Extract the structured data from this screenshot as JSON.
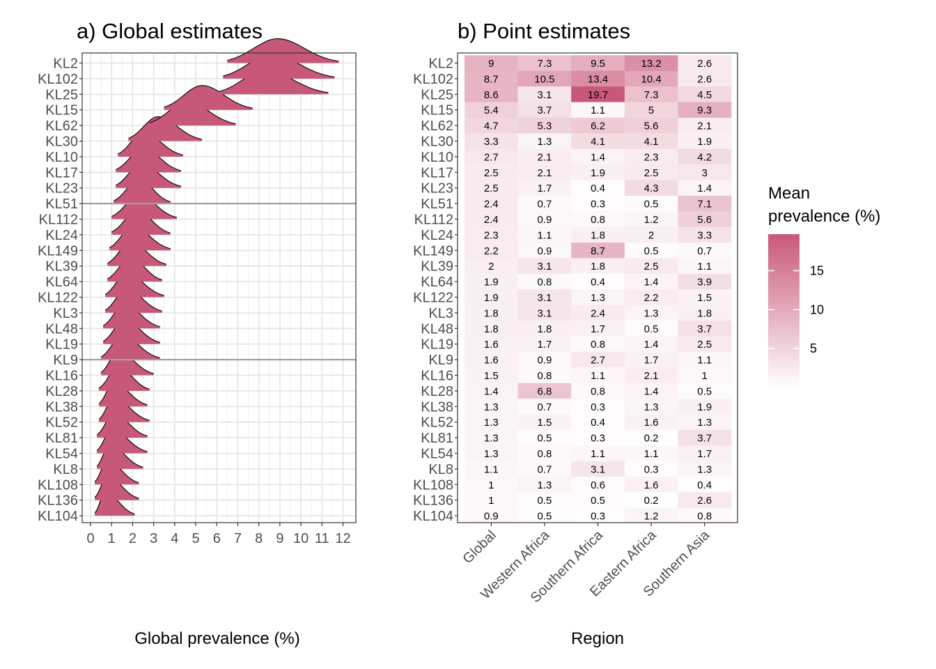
{
  "chart_data": [
    {
      "type": "ridgeline",
      "title": "a) Global estimates",
      "xlabel": "Global prevalence (%)",
      "ylabel": "",
      "xlim": [
        0,
        12
      ],
      "xticks": [
        0,
        1,
        2,
        3,
        4,
        5,
        6,
        7,
        8,
        9,
        10,
        11,
        12
      ],
      "grid": true,
      "fill_color": "#c8587a",
      "separator_lines_below": [
        "KL51",
        "KL9"
      ],
      "categories": [
        "KL2",
        "KL102",
        "KL25",
        "KL15",
        "KL62",
        "KL30",
        "KL10",
        "KL17",
        "KL23",
        "KL51",
        "KL112",
        "KL24",
        "KL149",
        "KL39",
        "KL64",
        "KL122",
        "KL3",
        "KL48",
        "KL19",
        "KL9",
        "KL16",
        "KL28",
        "KL38",
        "KL52",
        "KL81",
        "KL54",
        "KL8",
        "KL108",
        "KL136",
        "KL104"
      ],
      "distributions": [
        {
          "mode": 8.9,
          "min": 6.5,
          "max": 11.8
        },
        {
          "mode": 8.6,
          "min": 6.3,
          "max": 11.6
        },
        {
          "mode": 8.3,
          "min": 6.1,
          "max": 11.3
        },
        {
          "mode": 5.3,
          "min": 3.5,
          "max": 7.7
        },
        {
          "mode": 4.6,
          "min": 2.8,
          "max": 6.9
        },
        {
          "mode": 3.2,
          "min": 1.8,
          "max": 5.3
        },
        {
          "mode": 2.5,
          "min": 1.3,
          "max": 4.4
        },
        {
          "mode": 2.5,
          "min": 1.2,
          "max": 4.3
        },
        {
          "mode": 2.4,
          "min": 1.2,
          "max": 4.3
        },
        {
          "mode": 2.3,
          "min": 1.1,
          "max": 3.8
        },
        {
          "mode": 2.3,
          "min": 1.0,
          "max": 4.1
        },
        {
          "mode": 2.2,
          "min": 1.0,
          "max": 3.8
        },
        {
          "mode": 2.0,
          "min": 0.9,
          "max": 3.8
        },
        {
          "mode": 1.9,
          "min": 0.8,
          "max": 3.6
        },
        {
          "mode": 1.9,
          "min": 0.8,
          "max": 3.4
        },
        {
          "mode": 1.7,
          "min": 0.7,
          "max": 3.5
        },
        {
          "mode": 1.7,
          "min": 0.7,
          "max": 3.4
        },
        {
          "mode": 1.6,
          "min": 0.6,
          "max": 3.3
        },
        {
          "mode": 1.6,
          "min": 0.6,
          "max": 3.3
        },
        {
          "mode": 1.5,
          "min": 0.5,
          "max": 3.3
        },
        {
          "mode": 1.3,
          "min": 0.5,
          "max": 3.0
        },
        {
          "mode": 1.3,
          "min": 0.4,
          "max": 2.8
        },
        {
          "mode": 1.1,
          "min": 0.4,
          "max": 2.7
        },
        {
          "mode": 1.1,
          "min": 0.4,
          "max": 2.8
        },
        {
          "mode": 1.1,
          "min": 0.3,
          "max": 2.7
        },
        {
          "mode": 1.0,
          "min": 0.3,
          "max": 2.7
        },
        {
          "mode": 0.9,
          "min": 0.3,
          "max": 2.5
        },
        {
          "mode": 0.8,
          "min": 0.2,
          "max": 2.3
        },
        {
          "mode": 0.8,
          "min": 0.2,
          "max": 2.3
        },
        {
          "mode": 0.7,
          "min": 0.2,
          "max": 2.1
        }
      ]
    },
    {
      "type": "heatmap",
      "title": "b) Point estimates",
      "xlabel": "Region",
      "ylabel": "",
      "x_categories": [
        "Global",
        "Western Africa",
        "Southern Africa",
        "Eastern Africa",
        "Southern Asia"
      ],
      "y_categories": [
        "KL2",
        "KL102",
        "KL25",
        "KL15",
        "KL62",
        "KL30",
        "KL10",
        "KL17",
        "KL23",
        "KL51",
        "KL112",
        "KL24",
        "KL149",
        "KL39",
        "KL64",
        "KL122",
        "KL3",
        "KL48",
        "KL19",
        "KL9",
        "KL16",
        "KL28",
        "KL38",
        "KL52",
        "KL81",
        "KL54",
        "KL8",
        "KL108",
        "KL136",
        "KL104"
      ],
      "values": [
        [
          "9",
          "7.3",
          "9.5",
          "13.2",
          "2.6"
        ],
        [
          "8.7",
          "10.5",
          "13.4",
          "10.4",
          "2.6"
        ],
        [
          "8.6",
          "3.1",
          "19.7",
          "7.3",
          "4.5"
        ],
        [
          "5.4",
          "3.7",
          "1.1",
          "5",
          "9.3"
        ],
        [
          "4.7",
          "5.3",
          "6.2",
          "5.6",
          "2.1"
        ],
        [
          "3.3",
          "1.3",
          "4.1",
          "4.1",
          "1.9"
        ],
        [
          "2.7",
          "2.1",
          "1.4",
          "2.3",
          "4.2"
        ],
        [
          "2.5",
          "2.1",
          "1.9",
          "2.5",
          "3"
        ],
        [
          "2.5",
          "1.7",
          "0.4",
          "4.3",
          "1.4"
        ],
        [
          "2.4",
          "0.7",
          "0.3",
          "0.5",
          "7.1"
        ],
        [
          "2.4",
          "0.9",
          "0.8",
          "1.2",
          "5.6"
        ],
        [
          "2.3",
          "1.1",
          "1.8",
          "2",
          "3.3"
        ],
        [
          "2.2",
          "0.9",
          "8.7",
          "0.5",
          "0.7"
        ],
        [
          "2",
          "3.1",
          "1.8",
          "2.5",
          "1.1"
        ],
        [
          "1.9",
          "0.8",
          "0.4",
          "1.4",
          "3.9"
        ],
        [
          "1.9",
          "3.1",
          "1.3",
          "2.2",
          "1.5"
        ],
        [
          "1.8",
          "3.1",
          "2.4",
          "1.3",
          "1.8"
        ],
        [
          "1.8",
          "1.8",
          "1.7",
          "0.5",
          "3.7"
        ],
        [
          "1.6",
          "1.7",
          "0.8",
          "1.4",
          "2.5"
        ],
        [
          "1.6",
          "0.9",
          "2.7",
          "1.7",
          "1.1"
        ],
        [
          "1.5",
          "0.8",
          "1.1",
          "2.1",
          "1"
        ],
        [
          "1.4",
          "6.8",
          "0.8",
          "1.4",
          "0.5"
        ],
        [
          "1.3",
          "0.7",
          "0.3",
          "1.3",
          "1.9"
        ],
        [
          "1.3",
          "1.5",
          "0.4",
          "1.6",
          "1.3"
        ],
        [
          "1.3",
          "0.5",
          "0.3",
          "0.2",
          "3.7"
        ],
        [
          "1.3",
          "0.8",
          "1.1",
          "1.1",
          "1.7"
        ],
        [
          "1.1",
          "0.7",
          "3.1",
          "0.3",
          "1.3"
        ],
        [
          "1",
          "1.3",
          "0.6",
          "1.6",
          "0.4"
        ],
        [
          "1",
          "0.5",
          "0.5",
          "0.2",
          "2.6"
        ],
        [
          "0.9",
          "0.5",
          "0.3",
          "1.2",
          "0.8"
        ]
      ],
      "legend": {
        "title_lines": [
          "Mean",
          "prevalence (%)"
        ],
        "ticks": [
          5,
          10,
          15
        ],
        "range": [
          0,
          19.7
        ],
        "low_color": "#ffffff",
        "high_color": "#c8587a",
        "placement": "right"
      }
    }
  ]
}
